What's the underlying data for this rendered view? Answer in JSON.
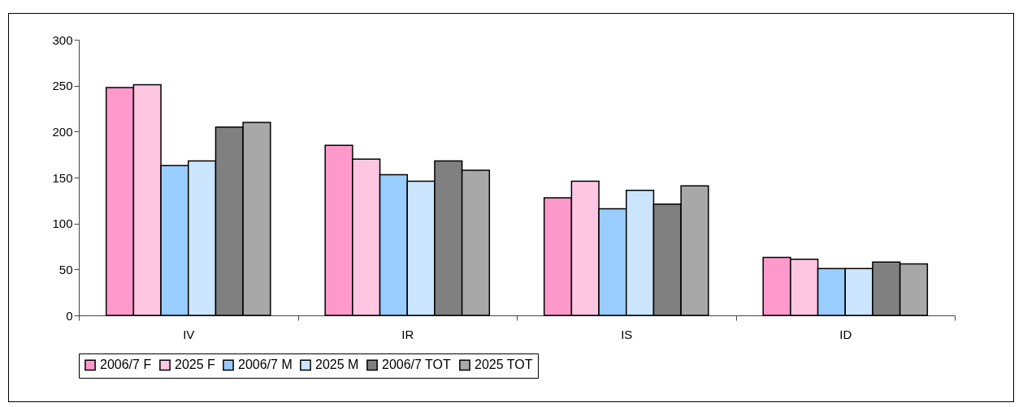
{
  "chart_data": {
    "type": "bar",
    "categories": [
      "IV",
      "IR",
      "IS",
      "ID"
    ],
    "series": [
      {
        "name": "2006/7 F",
        "color": "#ff99cc",
        "values": [
          248,
          185,
          128,
          63
        ]
      },
      {
        "name": "2025 F",
        "color": "#ffc6e2",
        "values": [
          251,
          170,
          146,
          61
        ]
      },
      {
        "name": "2006/7 M",
        "color": "#99ccff",
        "values": [
          163,
          153,
          116,
          51
        ]
      },
      {
        "name": "2025 M",
        "color": "#cce5ff",
        "values": [
          168,
          146,
          136,
          51
        ]
      },
      {
        "name": "2006/7 TOT",
        "color": "#808080",
        "values": [
          205,
          168,
          121,
          58
        ]
      },
      {
        "name": "2025 TOT",
        "color": "#a8a8a8",
        "values": [
          210,
          158,
          141,
          56
        ]
      }
    ],
    "ylim": [
      0,
      300
    ],
    "yticks": [
      0,
      50,
      100,
      150,
      200,
      250,
      300
    ],
    "grid": false,
    "legend": "bottom"
  }
}
